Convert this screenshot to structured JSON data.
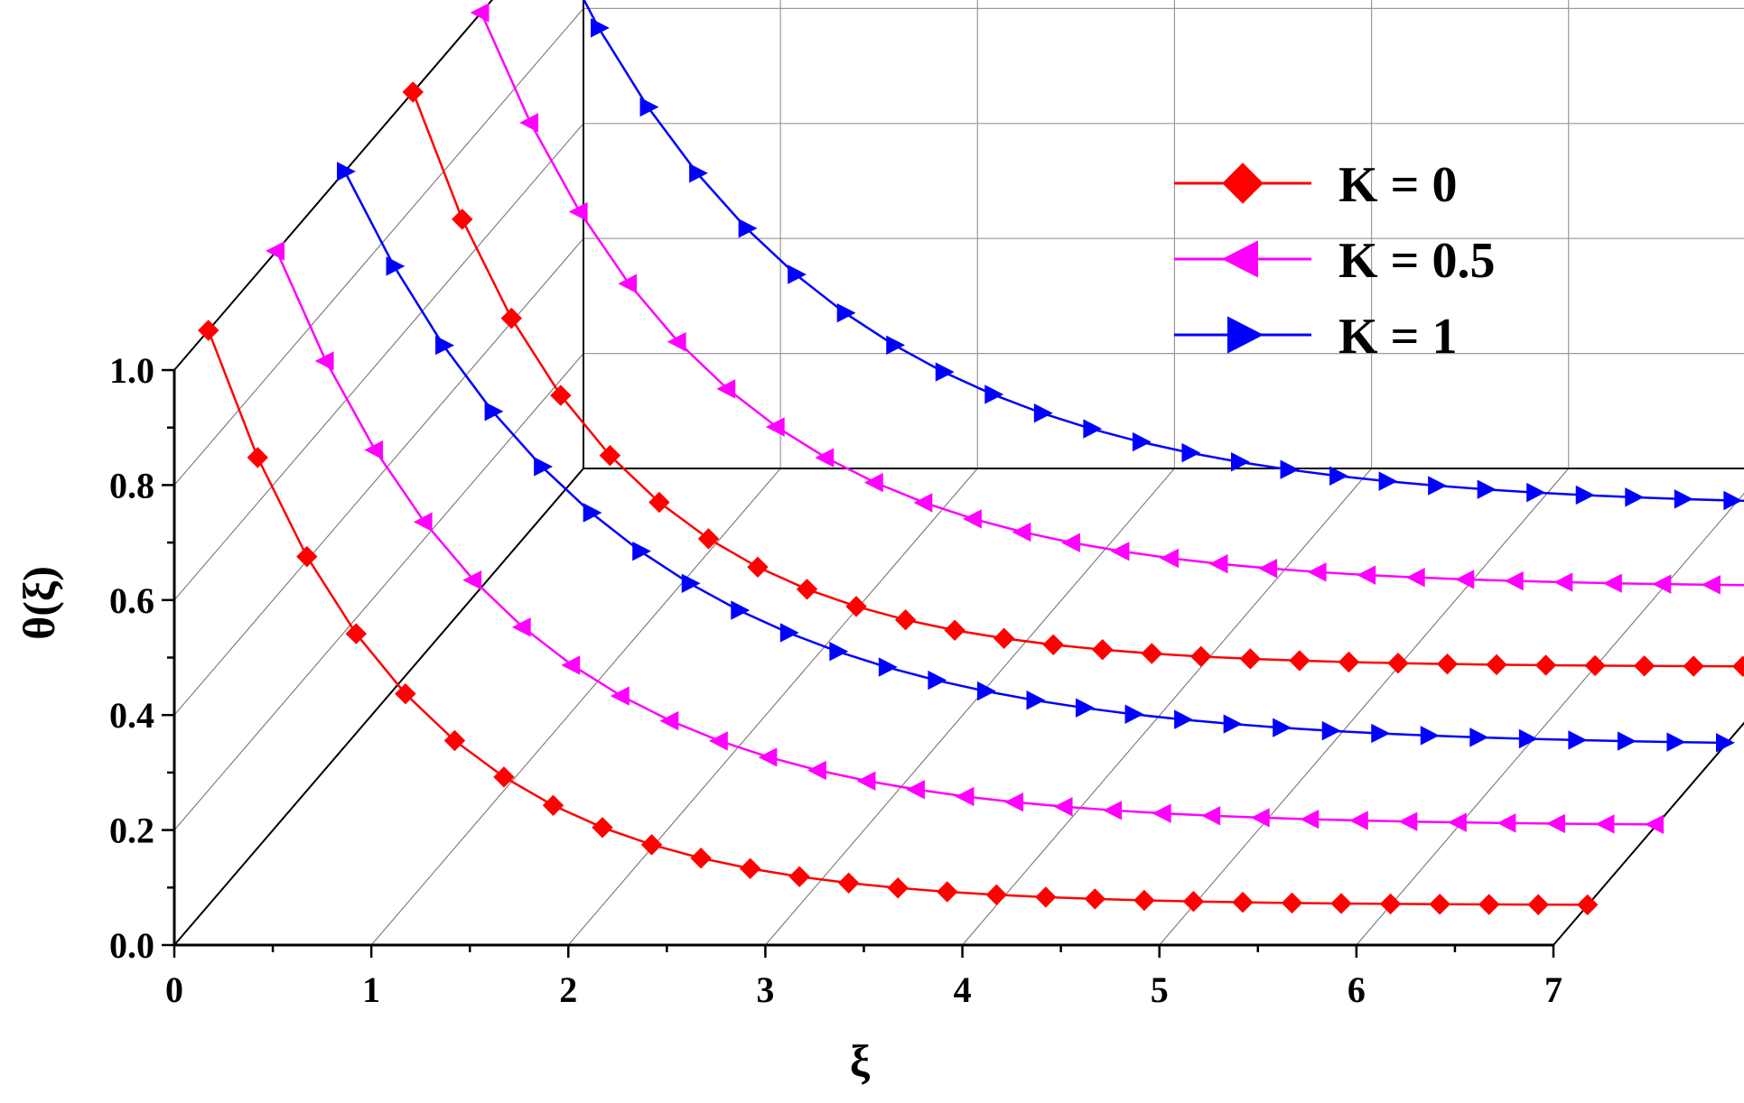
{
  "chart_data": {
    "type": "line",
    "projection": "3D waterfall (series offset in depth)",
    "xlabel": "ξ",
    "ylabel": "θ(ξ)",
    "xlim": [
      0,
      7
    ],
    "ylim": [
      0,
      1
    ],
    "x_ticks": [
      "0",
      "1",
      "2",
      "3",
      "4",
      "5",
      "6",
      "7"
    ],
    "y_ticks": [
      "0.0",
      "0.2",
      "0.4",
      "0.6",
      "0.8",
      "1.0"
    ],
    "grid": true,
    "legend_position": "top-right",
    "x": [
      0,
      0.25,
      0.5,
      0.75,
      1,
      1.25,
      1.5,
      1.75,
      2,
      2.25,
      2.5,
      2.75,
      3,
      3.25,
      3.5,
      3.75,
      4,
      4.25,
      4.5,
      4.75,
      5,
      5.25,
      5.5,
      5.75,
      6,
      6.25,
      6.5,
      6.75,
      7
    ],
    "series": [
      {
        "name": "K = 0",
        "color": "#ff0000",
        "marker": "diamond",
        "depth_rows": [
          0,
          3
        ],
        "theta0": 1.0,
        "decay": 1.0
      },
      {
        "name": "K = 0.5",
        "color": "#ff00ff",
        "marker": "triangle-left",
        "depth_rows": [
          1,
          4
        ],
        "theta0": 1.0,
        "decay": 0.85
      },
      {
        "name": "K = 1",
        "color": "#0000ff",
        "marker": "triangle-right",
        "depth_rows": [
          2,
          5
        ],
        "theta0": 1.0,
        "decay": 0.72
      }
    ]
  }
}
